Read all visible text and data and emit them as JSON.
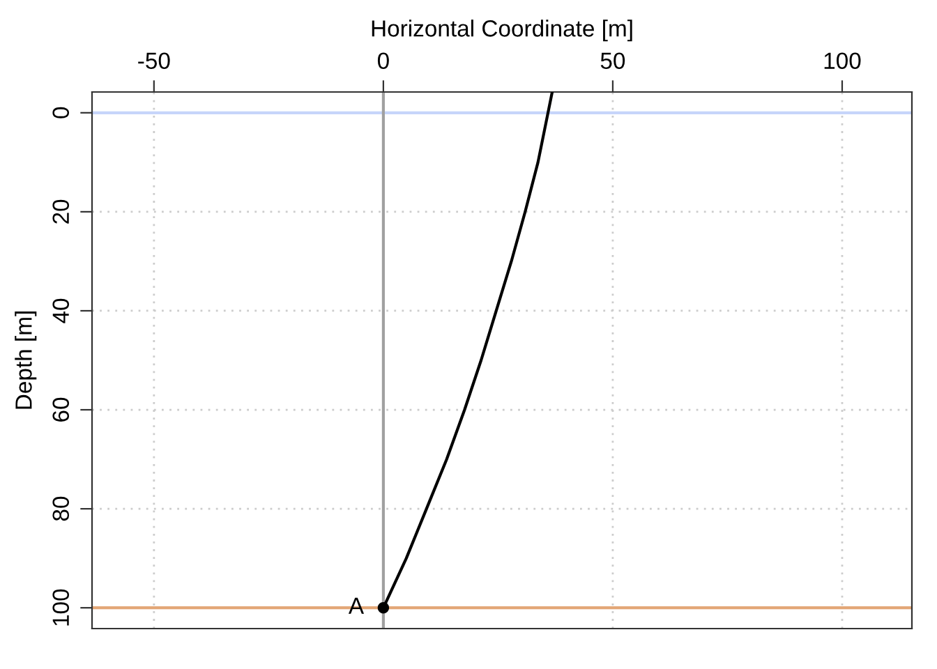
{
  "chart_data": {
    "type": "line",
    "xlabel": "Horizontal Coordinate [m]",
    "ylabel": "Depth [m]",
    "xlim": [
      -63.5,
      115.2
    ],
    "xticks": [
      -50,
      0,
      50,
      100
    ],
    "ylim": [
      104.2,
      -4.2
    ],
    "yticks": [
      0,
      20,
      40,
      60,
      80,
      100
    ],
    "grid": true,
    "marker": "none",
    "line_style": "solid",
    "series": [
      {
        "color": "#000000",
        "x": [
          36.8,
          33.7,
          30.9,
          27.9,
          24.6,
          21.3,
          17.7,
          13.8,
          9.4,
          5.0,
          0
        ],
        "values": [
          -4.2,
          10,
          20,
          30,
          40,
          50,
          60,
          70,
          80,
          90,
          100
        ]
      },
      {
        "type": "scatter",
        "color": "#000000",
        "marker": "circle",
        "x": [
          0
        ],
        "values": [
          100
        ]
      }
    ],
    "ref_lines": [
      {
        "axis": "y",
        "value": 0,
        "color": "#c6d5fa"
      },
      {
        "axis": "y",
        "value": 100,
        "color": "#e3a777"
      },
      {
        "axis": "x",
        "value": 0,
        "color": "#a0a0a0"
      }
    ],
    "annotations": [
      {
        "text": "A",
        "x": 0,
        "y": 100
      }
    ]
  }
}
